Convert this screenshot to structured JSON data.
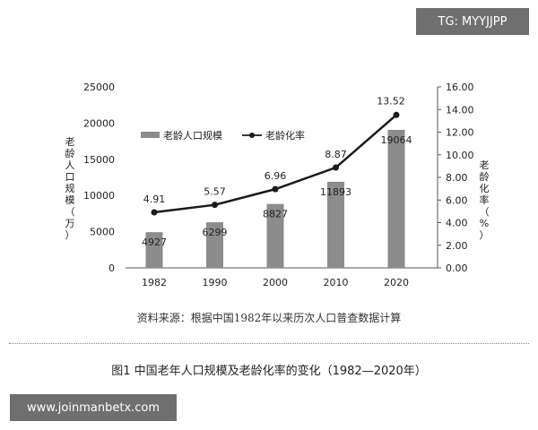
{
  "watermarks": {
    "top": "TG: MYYJJPP",
    "bottom": "www.joinmanbetx.com"
  },
  "source_note": "资料来源：根据中国1982年以来历次人口普查数据计算",
  "figure_caption": "图1    中国老年人口规模及老龄化率的变化（1982—2020年）",
  "colors": {
    "bar": "#8c8c8c",
    "line": "#1a1a1a",
    "text": "#222222",
    "axis": "#555555"
  },
  "chart_data": {
    "type": "bar",
    "categories": [
      "1982",
      "1990",
      "2000",
      "2010",
      "2020"
    ],
    "series": [
      {
        "name": "老龄人口规模",
        "type": "bar",
        "axis": "left",
        "values": [
          4927,
          6299,
          8827,
          11893,
          19064
        ],
        "labels": [
          "4927",
          "6299",
          "8827",
          "11893",
          "19064"
        ]
      },
      {
        "name": "老龄化率",
        "type": "line",
        "axis": "right",
        "values": [
          4.91,
          5.57,
          6.96,
          8.87,
          13.52
        ],
        "labels": [
          "4.91",
          "5.57",
          "6.96",
          "8.87",
          "13.52"
        ]
      }
    ],
    "ylabel_left": "老龄人口规模（万）",
    "ylabel_right": "老龄化率（%）",
    "ylim_left": [
      0,
      25000
    ],
    "ylim_right": [
      0,
      16
    ],
    "yticks_left": [
      "0",
      "5000",
      "10000",
      "15000",
      "20000",
      "25000"
    ],
    "yticks_right": [
      "0.00",
      "2.00",
      "4.00",
      "6.00",
      "8.00",
      "10.00",
      "12.00",
      "14.00",
      "16.00"
    ],
    "legend_position": "top-left",
    "grid": false
  }
}
